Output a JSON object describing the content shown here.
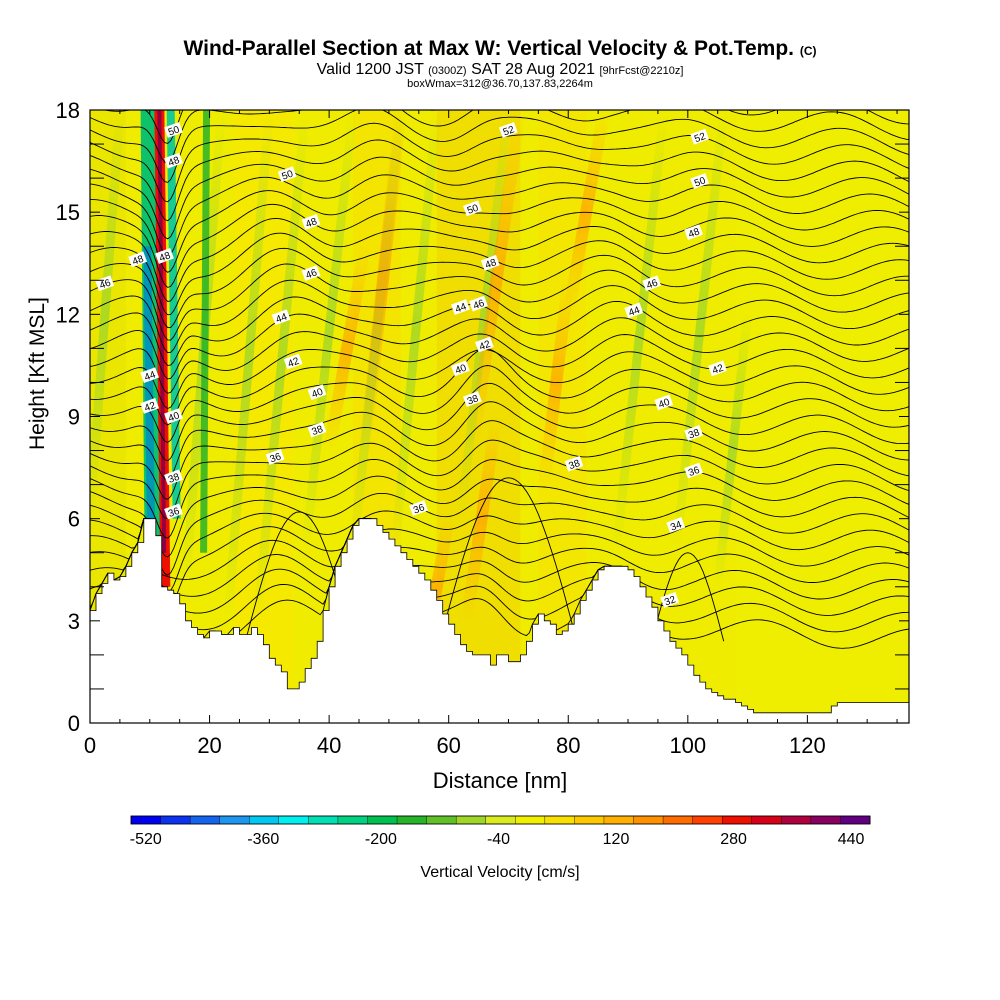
{
  "title_main": "Wind-Parallel Section at Max W: Vertical Velocity & Pot.Temp.",
  "title_c": "(C)",
  "subtitle_a": "Valid 1200 JST",
  "subtitle_b": "(0300Z)",
  "subtitle_c": "SAT 28 Aug 2021",
  "subtitle_d": "[9hrFcst@2210z]",
  "subtitle2": "boxWmax=312@36.70,137.83,2264m",
  "chart_data": {
    "type": "heatmap",
    "xlabel": "Distance [nm]",
    "ylabel": "Height [Kft MSL]",
    "xlim": [
      0,
      137
    ],
    "ylim": [
      0,
      18
    ],
    "xticks": [
      0,
      20,
      40,
      60,
      80,
      100,
      120
    ],
    "yticks": [
      0,
      3,
      6,
      9,
      12,
      15,
      18
    ],
    "terrain_kft": [
      [
        0,
        3.3
      ],
      [
        1,
        3.8
      ],
      [
        2,
        4.1
      ],
      [
        3,
        4.4
      ],
      [
        4,
        4.2
      ],
      [
        5,
        4.3
      ],
      [
        6,
        4.6
      ],
      [
        7,
        5.0
      ],
      [
        8,
        5.3
      ],
      [
        9,
        6.0
      ],
      [
        10,
        6.0
      ],
      [
        11,
        5.5
      ],
      [
        12,
        4.0
      ],
      [
        13,
        3.9
      ],
      [
        14,
        3.8
      ],
      [
        15,
        3.5
      ],
      [
        16,
        3.0
      ],
      [
        17,
        2.8
      ],
      [
        18,
        2.6
      ],
      [
        19,
        2.5
      ],
      [
        20,
        2.7
      ],
      [
        21,
        2.7
      ],
      [
        22,
        2.6
      ],
      [
        23,
        2.6
      ],
      [
        24,
        2.8
      ],
      [
        25,
        2.6
      ],
      [
        26,
        2.6
      ],
      [
        27,
        2.8
      ],
      [
        28,
        2.6
      ],
      [
        29,
        2.3
      ],
      [
        30,
        1.9
      ],
      [
        31,
        1.7
      ],
      [
        32,
        1.5
      ],
      [
        33,
        1.0
      ],
      [
        34,
        1.0
      ],
      [
        35,
        1.2
      ],
      [
        36,
        1.6
      ],
      [
        37,
        1.9
      ],
      [
        38,
        2.4
      ],
      [
        39,
        3.3
      ],
      [
        40,
        4.0
      ],
      [
        41,
        4.6
      ],
      [
        42,
        5.0
      ],
      [
        43,
        5.4
      ],
      [
        44,
        5.8
      ],
      [
        45,
        6.0
      ],
      [
        46,
        6.0
      ],
      [
        47,
        6.0
      ],
      [
        48,
        5.8
      ],
      [
        49,
        5.6
      ],
      [
        50,
        5.4
      ],
      [
        51,
        5.2
      ],
      [
        52,
        5.0
      ],
      [
        53,
        4.8
      ],
      [
        54,
        4.6
      ],
      [
        55,
        4.4
      ],
      [
        56,
        4.2
      ],
      [
        57,
        3.9
      ],
      [
        58,
        3.6
      ],
      [
        59,
        3.2
      ],
      [
        60,
        2.9
      ],
      [
        61,
        2.6
      ],
      [
        62,
        2.3
      ],
      [
        63,
        2.1
      ],
      [
        64,
        2.0
      ],
      [
        65,
        2.0
      ],
      [
        66,
        2.0
      ],
      [
        67,
        1.7
      ],
      [
        68,
        2.0
      ],
      [
        69,
        2.0
      ],
      [
        70,
        1.8
      ],
      [
        71,
        1.8
      ],
      [
        72,
        2.0
      ],
      [
        73,
        2.4
      ],
      [
        74,
        2.9
      ],
      [
        75,
        3.2
      ],
      [
        76,
        3.0
      ],
      [
        77,
        2.9
      ],
      [
        78,
        2.6
      ],
      [
        79,
        2.7
      ],
      [
        80,
        2.9
      ],
      [
        81,
        3.2
      ],
      [
        82,
        3.6
      ],
      [
        83,
        3.9
      ],
      [
        84,
        4.2
      ],
      [
        85,
        4.5
      ],
      [
        86,
        4.6
      ],
      [
        87,
        4.6
      ],
      [
        88,
        4.6
      ],
      [
        89,
        4.6
      ],
      [
        90,
        4.5
      ],
      [
        91,
        4.3
      ],
      [
        92,
        4.0
      ],
      [
        93,
        3.7
      ],
      [
        94,
        3.4
      ],
      [
        95,
        3.0
      ],
      [
        96,
        2.7
      ],
      [
        97,
        2.4
      ],
      [
        98,
        2.2
      ],
      [
        99,
        2.0
      ],
      [
        100,
        1.7
      ],
      [
        101,
        1.4
      ],
      [
        102,
        1.2
      ],
      [
        103,
        1.0
      ],
      [
        104,
        0.9
      ],
      [
        105,
        0.8
      ],
      [
        106,
        0.7
      ],
      [
        107,
        0.7
      ],
      [
        108,
        0.6
      ],
      [
        109,
        0.5
      ],
      [
        110,
        0.4
      ],
      [
        111,
        0.3
      ],
      [
        112,
        0.3
      ],
      [
        113,
        0.3
      ],
      [
        114,
        0.3
      ],
      [
        115,
        0.3
      ],
      [
        116,
        0.3
      ],
      [
        117,
        0.3
      ],
      [
        118,
        0.3
      ],
      [
        119,
        0.3
      ],
      [
        120,
        0.3
      ],
      [
        121,
        0.3
      ],
      [
        122,
        0.3
      ],
      [
        123,
        0.3
      ],
      [
        124,
        0.5
      ],
      [
        125,
        0.6
      ],
      [
        126,
        0.6
      ],
      [
        127,
        0.6
      ],
      [
        128,
        0.6
      ],
      [
        129,
        0.6
      ],
      [
        130,
        0.6
      ],
      [
        131,
        0.6
      ],
      [
        132,
        0.6
      ],
      [
        133,
        0.6
      ],
      [
        134,
        0.6
      ],
      [
        135,
        0.6
      ],
      [
        136,
        0.6
      ],
      [
        137,
        0.6
      ]
    ],
    "contour_labels": [
      {
        "x": 2.5,
        "y": 12.9,
        "text": "46"
      },
      {
        "x": 8,
        "y": 13.6,
        "text": "48"
      },
      {
        "x": 12.5,
        "y": 13.7,
        "text": "48"
      },
      {
        "x": 14,
        "y": 17.4,
        "text": "50"
      },
      {
        "x": 14,
        "y": 16.5,
        "text": "48"
      },
      {
        "x": 10,
        "y": 10.2,
        "text": "44"
      },
      {
        "x": 10,
        "y": 9.3,
        "text": "42"
      },
      {
        "x": 14,
        "y": 9.0,
        "text": "40"
      },
      {
        "x": 14,
        "y": 7.2,
        "text": "38"
      },
      {
        "x": 14,
        "y": 6.2,
        "text": "36"
      },
      {
        "x": 33,
        "y": 16.1,
        "text": "50"
      },
      {
        "x": 37,
        "y": 14.7,
        "text": "48"
      },
      {
        "x": 37,
        "y": 13.2,
        "text": "46"
      },
      {
        "x": 32,
        "y": 11.9,
        "text": "44"
      },
      {
        "x": 34,
        "y": 10.6,
        "text": "42"
      },
      {
        "x": 38,
        "y": 9.7,
        "text": "40"
      },
      {
        "x": 38,
        "y": 8.6,
        "text": "38"
      },
      {
        "x": 31,
        "y": 7.8,
        "text": "36"
      },
      {
        "x": 70,
        "y": 17.4,
        "text": "52"
      },
      {
        "x": 64,
        "y": 15.1,
        "text": "50"
      },
      {
        "x": 67,
        "y": 13.5,
        "text": "48"
      },
      {
        "x": 65,
        "y": 12.3,
        "text": "46"
      },
      {
        "x": 62,
        "y": 12.2,
        "text": "44"
      },
      {
        "x": 66,
        "y": 11.1,
        "text": "42"
      },
      {
        "x": 62,
        "y": 10.4,
        "text": "40"
      },
      {
        "x": 64,
        "y": 9.5,
        "text": "38"
      },
      {
        "x": 55,
        "y": 6.3,
        "text": "36"
      },
      {
        "x": 81,
        "y": 7.6,
        "text": "38"
      },
      {
        "x": 102,
        "y": 17.2,
        "text": "52"
      },
      {
        "x": 102,
        "y": 15.9,
        "text": "50"
      },
      {
        "x": 101,
        "y": 14.4,
        "text": "48"
      },
      {
        "x": 94,
        "y": 12.9,
        "text": "46"
      },
      {
        "x": 91,
        "y": 12.1,
        "text": "44"
      },
      {
        "x": 105,
        "y": 10.4,
        "text": "42"
      },
      {
        "x": 96,
        "y": 9.4,
        "text": "40"
      },
      {
        "x": 101,
        "y": 8.5,
        "text": "38"
      },
      {
        "x": 101,
        "y": 7.4,
        "text": "36"
      },
      {
        "x": 98,
        "y": 5.8,
        "text": "34"
      },
      {
        "x": 97,
        "y": 3.6,
        "text": "32"
      }
    ],
    "colorbar": {
      "label": "Vertical Velocity [cm/s]",
      "ticks": [
        "-520",
        "-360",
        "-200",
        "-40",
        "120",
        "280",
        "440"
      ],
      "colors": [
        "#0000f0",
        "#0a32f0",
        "#1464f0",
        "#1e96f0",
        "#00c8f0",
        "#00f0f0",
        "#00e0b4",
        "#00d282",
        "#00c050",
        "#28b428",
        "#60c028",
        "#a0d628",
        "#d8ec20",
        "#f0f000",
        "#f8e000",
        "#fcc800",
        "#ffb000",
        "#ff9000",
        "#ff6c00",
        "#ff4000",
        "#f01000",
        "#d80018",
        "#b00040",
        "#880060",
        "#600080"
      ]
    }
  }
}
